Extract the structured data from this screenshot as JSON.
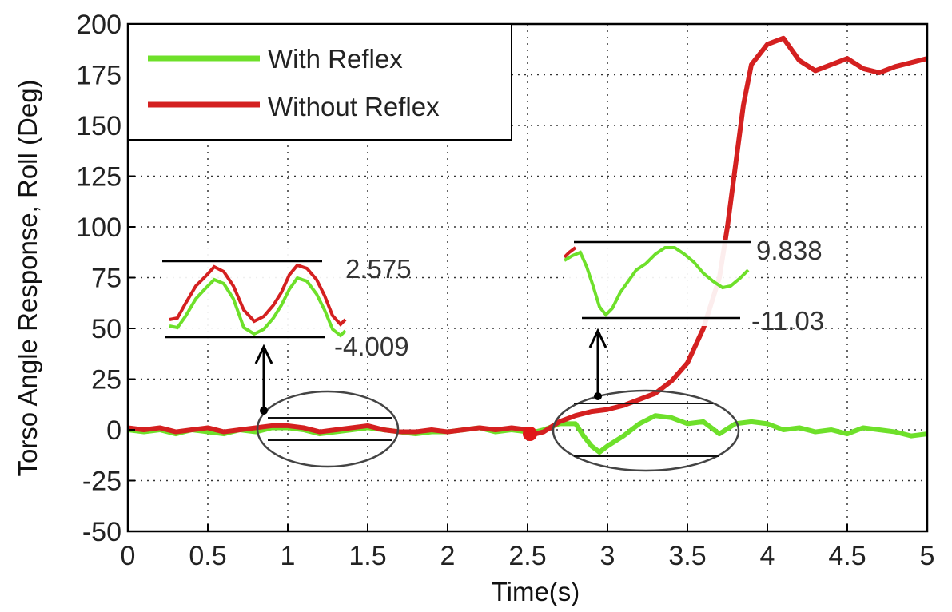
{
  "chart_data": {
    "type": "line",
    "xlabel": "Time(s)",
    "ylabel": "Torso Angle Response, Roll (Deg)",
    "xlim": [
      0,
      5
    ],
    "ylim": [
      -50,
      200
    ],
    "grid": true,
    "legend_position": "top-left",
    "x_ticks": [
      "0",
      "0.5",
      "1",
      "1.5",
      "2",
      "2.5",
      "3",
      "3.5",
      "4",
      "4.5",
      "5"
    ],
    "y_ticks": [
      "200",
      "175",
      "150",
      "125",
      "100",
      "75",
      "50",
      "25",
      "0",
      "-25",
      "-50"
    ],
    "series": [
      {
        "name": "With Reflex",
        "color": "#6ee02a",
        "points": [
          [
            0,
            0
          ],
          [
            0.1,
            -1
          ],
          [
            0.2,
            0
          ],
          [
            0.3,
            -2
          ],
          [
            0.4,
            0
          ],
          [
            0.5,
            -1
          ],
          [
            0.6,
            -2
          ],
          [
            0.7,
            0
          ],
          [
            0.8,
            -1
          ],
          [
            0.9,
            1
          ],
          [
            1.0,
            1
          ],
          [
            1.1,
            0
          ],
          [
            1.2,
            -2
          ],
          [
            1.3,
            -1
          ],
          [
            1.4,
            0
          ],
          [
            1.5,
            1
          ],
          [
            1.6,
            0
          ],
          [
            1.7,
            -1
          ],
          [
            1.8,
            -2
          ],
          [
            1.9,
            -1
          ],
          [
            2.0,
            -1
          ],
          [
            2.1,
            0
          ],
          [
            2.2,
            1
          ],
          [
            2.3,
            -1
          ],
          [
            2.4,
            0
          ],
          [
            2.5,
            -1
          ],
          [
            2.55,
            -1
          ],
          [
            2.6,
            0
          ],
          [
            2.7,
            3
          ],
          [
            2.8,
            3
          ],
          [
            2.85,
            -3
          ],
          [
            2.9,
            -8
          ],
          [
            2.95,
            -11
          ],
          [
            3.0,
            -8
          ],
          [
            3.1,
            -3
          ],
          [
            3.2,
            3
          ],
          [
            3.3,
            7
          ],
          [
            3.4,
            6
          ],
          [
            3.5,
            3
          ],
          [
            3.6,
            4
          ],
          [
            3.7,
            -2
          ],
          [
            3.8,
            3
          ],
          [
            3.9,
            4
          ],
          [
            4.0,
            3
          ],
          [
            4.1,
            0
          ],
          [
            4.2,
            1
          ],
          [
            4.3,
            -1
          ],
          [
            4.4,
            0
          ],
          [
            4.5,
            -2
          ],
          [
            4.6,
            1
          ],
          [
            4.7,
            0
          ],
          [
            4.8,
            -1
          ],
          [
            4.9,
            -3
          ],
          [
            5.0,
            -2
          ]
        ]
      },
      {
        "name": "Without Reflex",
        "color": "#d42020",
        "points": [
          [
            0,
            1
          ],
          [
            0.1,
            0
          ],
          [
            0.2,
            1
          ],
          [
            0.3,
            -1
          ],
          [
            0.4,
            0
          ],
          [
            0.5,
            1
          ],
          [
            0.6,
            -1
          ],
          [
            0.7,
            0
          ],
          [
            0.8,
            1
          ],
          [
            0.9,
            2
          ],
          [
            1.0,
            2
          ],
          [
            1.1,
            1
          ],
          [
            1.2,
            -1
          ],
          [
            1.3,
            0
          ],
          [
            1.4,
            1
          ],
          [
            1.5,
            2
          ],
          [
            1.6,
            0
          ],
          [
            1.7,
            -1
          ],
          [
            1.8,
            -1
          ],
          [
            1.9,
            0
          ],
          [
            2.0,
            -1
          ],
          [
            2.1,
            0
          ],
          [
            2.2,
            1
          ],
          [
            2.3,
            0
          ],
          [
            2.4,
            1
          ],
          [
            2.5,
            0
          ],
          [
            2.55,
            -2
          ],
          [
            2.6,
            -1
          ],
          [
            2.7,
            4
          ],
          [
            2.8,
            7
          ],
          [
            2.9,
            9
          ],
          [
            3.0,
            10
          ],
          [
            3.1,
            12
          ],
          [
            3.2,
            15
          ],
          [
            3.3,
            18
          ],
          [
            3.4,
            24
          ],
          [
            3.5,
            33
          ],
          [
            3.6,
            50
          ],
          [
            3.7,
            75
          ],
          [
            3.75,
            100
          ],
          [
            3.8,
            130
          ],
          [
            3.85,
            160
          ],
          [
            3.9,
            180
          ],
          [
            4.0,
            190
          ],
          [
            4.1,
            193
          ],
          [
            4.2,
            182
          ],
          [
            4.3,
            177
          ],
          [
            4.4,
            180
          ],
          [
            4.5,
            183
          ],
          [
            4.6,
            178
          ],
          [
            4.7,
            176
          ],
          [
            4.8,
            179
          ],
          [
            4.9,
            181
          ],
          [
            5.0,
            183
          ]
        ]
      }
    ],
    "annotations": [
      {
        "label_top": "2.575",
        "label_bottom": "-4.009"
      },
      {
        "label_top": "9.838",
        "label_bottom": "-11.03"
      }
    ]
  }
}
